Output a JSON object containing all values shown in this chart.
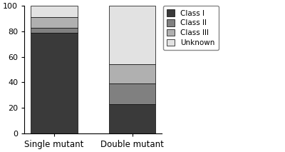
{
  "categories": [
    "Single mutant",
    "Double mutant"
  ],
  "class_I": [
    79,
    23
  ],
  "class_II": [
    4,
    16
  ],
  "class_III": [
    8,
    15
  ],
  "unknown": [
    9,
    46
  ],
  "colors": {
    "Class I": "#3a3a3a",
    "Class II": "#808080",
    "Class III": "#b0b0b0",
    "Unknown": "#e2e2e2"
  },
  "ylim": [
    0,
    100
  ],
  "yticks": [
    0,
    20,
    40,
    60,
    80,
    100
  ],
  "legend_labels": [
    "Class I",
    "Class II",
    "Class III",
    "Unknown"
  ],
  "bar_width": 0.6,
  "edgecolor": "#000000",
  "figsize": [
    4.0,
    2.13
  ],
  "dpi": 100
}
